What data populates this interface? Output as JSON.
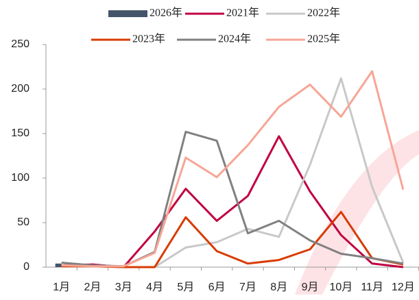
{
  "chart_data": {
    "type": "line",
    "categories": [
      "1月",
      "2月",
      "3月",
      "4月",
      "5月",
      "6月",
      "7月",
      "8月",
      "9月",
      "10月",
      "11月",
      "12月"
    ],
    "series": [
      {
        "name": "2026年",
        "type": "bar",
        "color": "#44546a",
        "values": [
          4,
          null,
          null,
          null,
          null,
          null,
          null,
          null,
          null,
          null,
          null,
          null
        ]
      },
      {
        "name": "2021年",
        "color": "#c00040",
        "values": [
          2,
          3,
          0,
          40,
          88,
          52,
          80,
          147,
          85,
          36,
          4,
          0
        ]
      },
      {
        "name": "2022年",
        "color": "#c8c8c8",
        "values": [
          2,
          1,
          0,
          0,
          22,
          28,
          43,
          34,
          115,
          212,
          90,
          5
        ]
      },
      {
        "name": "2023年",
        "color": "#d83b01",
        "values": [
          1,
          1,
          0,
          0,
          56,
          18,
          4,
          8,
          20,
          62,
          10,
          3
        ]
      },
      {
        "name": "2024年",
        "color": "#808080",
        "values": [
          5,
          2,
          1,
          17,
          152,
          142,
          38,
          52,
          30,
          15,
          10,
          4
        ]
      },
      {
        "name": "2025年",
        "color": "#f7a595",
        "values": [
          2,
          1,
          1,
          16,
          123,
          101,
          137,
          180,
          205,
          169,
          220,
          87
        ]
      }
    ],
    "ylim": [
      0,
      250
    ],
    "yticks": [
      0,
      50,
      100,
      150,
      200,
      250
    ]
  }
}
